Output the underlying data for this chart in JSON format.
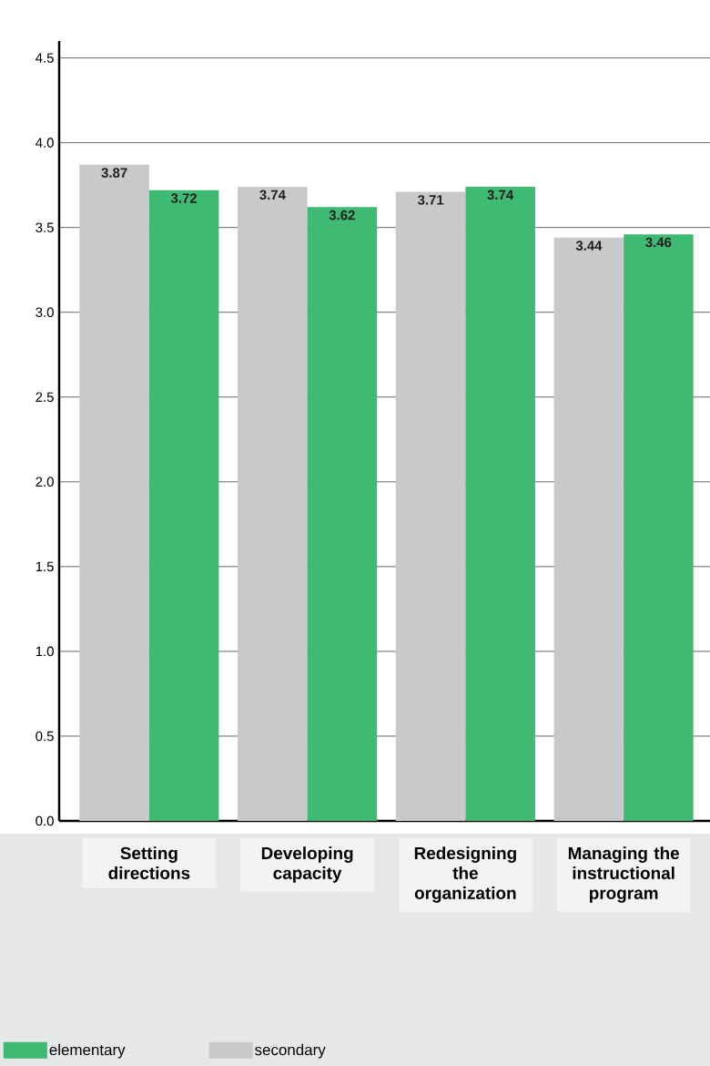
{
  "chart_data": {
    "type": "bar",
    "categories": [
      "Setting directions",
      "Developing capacity",
      "Redesigning the organization",
      "Managing the instructional program"
    ],
    "series": [
      {
        "name": "secondary",
        "color": "#c8c9cb",
        "values": [
          3.87,
          3.74,
          3.71,
          3.44
        ]
      },
      {
        "name": "elementary",
        "color": "#3fba73",
        "values": [
          3.72,
          3.62,
          3.74,
          3.46
        ]
      }
    ],
    "ylim": [
      0,
      4.6
    ],
    "yticks": [
      {
        "value": 0,
        "label": "0.0"
      },
      0.5,
      {
        "value": 1,
        "label": "1.0"
      },
      1.5,
      {
        "value": 2,
        "label": "2.0"
      },
      2.5,
      {
        "value": 3,
        "label": "3.0"
      },
      3.5,
      {
        "value": 4,
        "label": "4.0"
      },
      4.5
    ],
    "grid": "y",
    "legend": "bottom left",
    "data_labels": true
  }
}
